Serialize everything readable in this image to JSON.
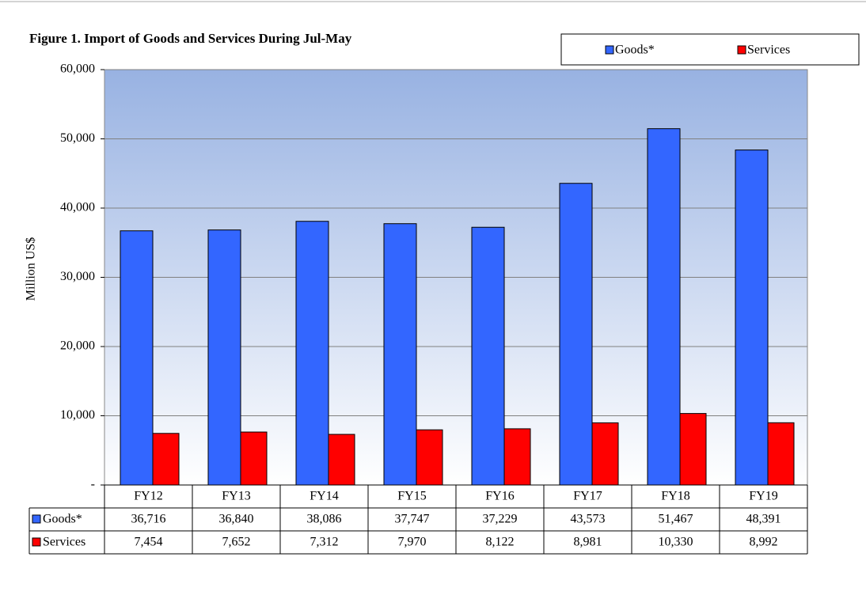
{
  "chart_data": {
    "type": "bar",
    "title": "Figure 1. Import  of Goods  and Services  During Jul-May",
    "y_label": "Million US$",
    "categories": [
      "FY12",
      "FY13",
      "FY14",
      "FY15",
      "FY16",
      "FY17",
      "FY18",
      "FY19"
    ],
    "series": [
      {
        "name": "Goods*",
        "color": "#3366ff",
        "values": [
          36716,
          36840,
          38086,
          37747,
          37229,
          43573,
          51467,
          48391
        ],
        "value_labels": [
          "36,716",
          "36,840",
          "38,086",
          "37,747",
          "37,229",
          "43,573",
          "51,467",
          "48,391"
        ]
      },
      {
        "name": "Services",
        "color": "#ff0000",
        "values": [
          7454,
          7652,
          7312,
          7970,
          8122,
          8981,
          10330,
          8992
        ],
        "value_labels": [
          "7,454",
          "7,652",
          "7,312",
          "7,970",
          "8,122",
          "8,981",
          "10,330",
          "8,992"
        ]
      }
    ],
    "ylim": [
      0,
      60000
    ],
    "yticks": [
      {
        "value": 0,
        "label": "-"
      },
      {
        "value": 10000,
        "label": "10,000"
      },
      {
        "value": 20000,
        "label": "20,000"
      },
      {
        "value": 30000,
        "label": "30,000"
      },
      {
        "value": 40000,
        "label": "40,000"
      },
      {
        "value": 50000,
        "label": "50,000"
      },
      {
        "value": 60000,
        "label": "60,000"
      }
    ],
    "grid": true
  }
}
